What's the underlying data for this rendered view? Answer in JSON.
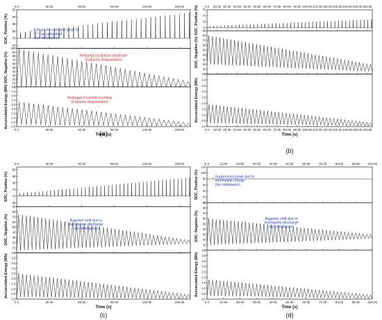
{
  "chart_data": [
    {
      "type": "line",
      "panel_label": "(a)",
      "xlabel": "Time (s)",
      "xlim": [
        0,
        160000
      ],
      "xticks": [
        "0.0",
        "30.0k",
        "60.0k",
        "90.0k",
        "120.0k",
        "150.0k"
      ],
      "cycles": 36,
      "subplots": [
        {
          "ylabel": "SOC, Positive (%)",
          "ylim": [
            68,
            95
          ],
          "yticks": [
            "70",
            "75",
            "80",
            "85",
            "90",
            "95"
          ],
          "baseline": 75,
          "series": [
            {
              "kind": "spikes",
              "peak_start": 79,
              "peak_end": 93
            }
          ],
          "annotations": [
            {
              "text": "Enhanced catholyte peak by V⁵⁺ accumulation (Ion Imbalance)",
              "color": "#1f3fbf"
            }
          ]
        },
        {
          "ylabel": "SOC, Negative (%)",
          "ylim": [
            0,
            100
          ],
          "yticks": [
            "0",
            "10",
            "20",
            "30",
            "40",
            "50",
            "60",
            "70",
            "80",
            "90",
            "100"
          ],
          "series": [
            {
              "kind": "triangle",
              "low_start": 0,
              "low_end": 0,
              "high_start": 98,
              "high_end": 15
            }
          ],
          "annotations": [
            {
              "text": "Reduced oscillation amplitude (Capacity Degradation)",
              "color": "#d62728"
            }
          ]
        },
        {
          "ylabel": "Accumulated Energy (Wh)",
          "ylim": [
            0,
            4.5
          ],
          "yticks": [
            "0.0",
            "0.5",
            "1.0",
            "1.5",
            "2.0",
            "2.5",
            "3.0",
            "3.5",
            "4.0",
            "4.5"
          ],
          "series": [
            {
              "kind": "sawtooth",
              "low_start": 0.2,
              "low_end": 0.05,
              "high_start": 2.8,
              "high_end": 0.45
            }
          ],
          "annotations": [
            {
              "text": "Reduced Coulomb counting (Capacity Degradation)",
              "color": "#d62728"
            }
          ]
        }
      ]
    },
    {
      "type": "line",
      "panel_label": "(b)",
      "xlabel": "Time (s)",
      "xlim": [
        0,
        165000
      ],
      "xticks": [
        "0.0",
        "10.0k",
        "20.0k",
        "30.0k",
        "40.0k",
        "50.0k",
        "60.0k",
        "70.0k",
        "80.0k",
        "90.0k",
        "100.0k",
        "110.0k",
        "120.0k",
        "130.0k",
        "140.0k",
        "150.0k",
        "160.0k"
      ],
      "cycles": 45,
      "subplots": [
        {
          "ylabel": "SOC, Positive (%)",
          "ylim": [
            69,
            76
          ],
          "yticks": [
            "70",
            "72",
            "74",
            "76"
          ],
          "baseline": 70,
          "series": [
            {
              "kind": "spikes",
              "peak_start": 70.6,
              "peak_end": 72.8
            }
          ],
          "annotations": []
        },
        {
          "ylabel": "SOC, Negative (%)",
          "ylim": [
            0,
            90
          ],
          "yticks": [
            "0",
            "10",
            "20",
            "30",
            "40",
            "50",
            "60",
            "70",
            "80",
            "90"
          ],
          "series": [
            {
              "kind": "triangle",
              "low_start": 20,
              "low_end": 5,
              "high_start": 80,
              "high_end": 20
            }
          ],
          "annotations": []
        },
        {
          "ylabel": "Accumulated Energy (Wh)",
          "ylim": [
            0,
            4.5
          ],
          "yticks": [
            "0.0",
            "0.5",
            "1.0",
            "1.5",
            "2.0",
            "2.5",
            "3.0",
            "3.5",
            "4.0",
            "4.5"
          ],
          "series": [
            {
              "kind": "sawtooth",
              "low_start": 0.3,
              "low_end": 0.05,
              "high_start": 1.9,
              "high_end": 0.35
            }
          ],
          "annotations": []
        }
      ]
    },
    {
      "type": "line",
      "panel_label": "(c)",
      "xlabel": "Time (s)",
      "xlim": [
        0,
        160000
      ],
      "xticks": [
        "0.0",
        "30.0k",
        "60.0k",
        "90.0k",
        "120.0k",
        "150.0k"
      ],
      "cycles": 45,
      "subplots": [
        {
          "ylabel": "SOC, Positive (%)",
          "ylim": [
            62,
            92
          ],
          "yticks": [
            "65",
            "70",
            "75",
            "80",
            "85",
            "90"
          ],
          "baseline": 70,
          "series": [
            {
              "kind": "spikes",
              "peak_start": 72,
              "peak_end": 84
            }
          ],
          "annotations": []
        },
        {
          "ylabel": "SOC, Negative (%)",
          "ylim": [
            0,
            90
          ],
          "yticks": [
            "0",
            "10",
            "20",
            "30",
            "40",
            "50",
            "60",
            "70",
            "80",
            "90"
          ],
          "series": [
            {
              "kind": "triangle",
              "low_start": 5,
              "low_end": 18,
              "high_start": 75,
              "high_end": 25
            }
          ],
          "annotations": [
            {
              "text": "Baseline shift due to incomplete discharge (Ion Imbalance)",
              "color": "#1f3fbf"
            }
          ]
        },
        {
          "ylabel": "Accumulated Energy (Wh)",
          "ylim": [
            0,
            4.5
          ],
          "yticks": [
            "0.0",
            "0.5",
            "1.0",
            "1.5",
            "2.0",
            "2.5",
            "3.0",
            "3.5",
            "4.0",
            "4.5"
          ],
          "series": [
            {
              "kind": "sawtooth",
              "low_start": 0.2,
              "low_end": 0.05,
              "high_start": 2.5,
              "high_end": 0.45
            }
          ],
          "annotations": []
        }
      ]
    },
    {
      "type": "line",
      "panel_label": "(d)",
      "xlabel": "Time (s)",
      "xlim": [
        0,
        100000
      ],
      "xticks": [
        "0.0",
        "10.0k",
        "20.0k",
        "30.0k",
        "40.0k",
        "50.0k",
        "60.0k",
        "70.0k",
        "80.0k",
        "90.0k",
        "100.0k"
      ],
      "cycles": 45,
      "subplots": [
        {
          "ylabel": "SOC, Positive (%)",
          "ylim": [
            0,
            120
          ],
          "yticks": [
            "0",
            "20",
            "40",
            "60",
            "80",
            "100",
            "120"
          ],
          "baseline": 80,
          "series": [
            {
              "kind": "flat",
              "value": 80
            }
          ],
          "annotations": [
            {
              "text": "Suppressed peak due to incomplete charge (Ion Imbalance)",
              "color": "#1f3fbf"
            }
          ]
        },
        {
          "ylabel": "SOC, Negative (%)",
          "ylim": [
            0,
            90
          ],
          "yticks": [
            "0",
            "10",
            "20",
            "30",
            "40",
            "50",
            "60",
            "70",
            "80",
            "90"
          ],
          "series": [
            {
              "kind": "triangle",
              "low_start": 10,
              "low_end": 22,
              "high_start": 60,
              "high_end": 30
            }
          ],
          "annotations": [
            {
              "text": "Baseline shift due to incomplete discharge (Ion Imbalance)",
              "color": "#1f3fbf"
            }
          ]
        },
        {
          "ylabel": "Accumulated Energy (Wh)",
          "ylim": [
            0,
            4.5
          ],
          "yticks": [
            "0.0",
            "0.5",
            "1.0",
            "1.5",
            "2.0",
            "2.5",
            "3.0",
            "3.5",
            "4.0",
            "4.5"
          ],
          "series": [
            {
              "kind": "sawtooth",
              "low_start": 0.3,
              "low_end": 0.05,
              "high_start": 1.8,
              "high_end": 0.4
            }
          ],
          "annotations": []
        }
      ]
    }
  ]
}
